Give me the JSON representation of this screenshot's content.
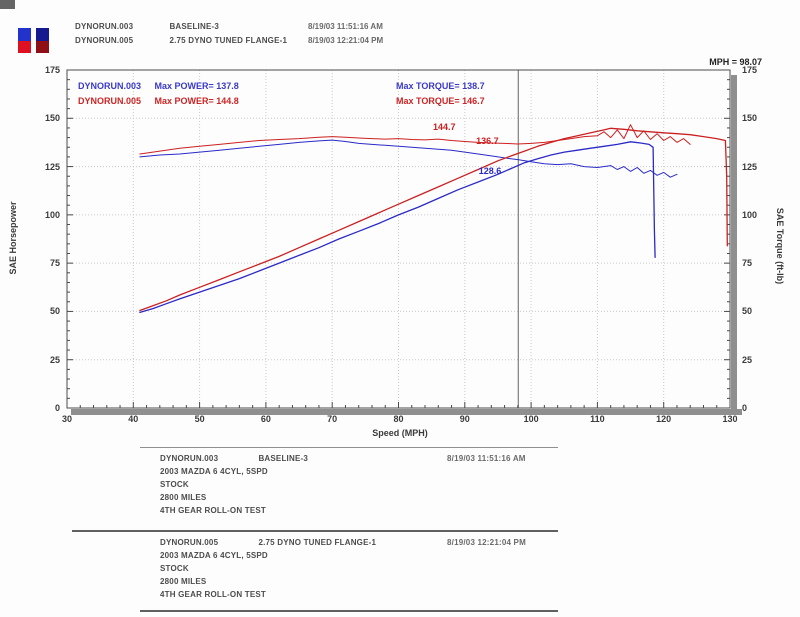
{
  "header": {
    "rows": [
      {
        "name": "DYNORUN.003",
        "desc": "BASELINE-3",
        "timestamp": "8/19/03 11:51:16 AM"
      },
      {
        "name": "DYNORUN.005",
        "desc": "2.75 DYNO TUNED FLANGE-1",
        "timestamp": "8/19/03 12:21:04 PM"
      }
    ],
    "chips": [
      {
        "top": "#2233cc",
        "bottom": "#dd1122"
      },
      {
        "top": "#151a8e",
        "bottom": "#8e1016"
      }
    ]
  },
  "cursor": {
    "label": "MPH = 98.07",
    "mph": 98.07
  },
  "chart_data": {
    "type": "line",
    "xlabel": "Speed (MPH)",
    "ylabel_left": "SAE Horsepower",
    "ylabel_right": "SAE Torque (ft-lb)",
    "xlim": [
      30,
      130
    ],
    "ylim": [
      0,
      175
    ],
    "x_ticks": [
      30,
      40,
      50,
      60,
      70,
      80,
      90,
      100,
      110,
      120,
      130
    ],
    "y_ticks": [
      0,
      25,
      50,
      75,
      100,
      125,
      150,
      175
    ],
    "grid": "dotted",
    "legend_position": "top-left-inside",
    "legend": [
      {
        "run": "DYNORUN.003",
        "power": "Max POWER= 137.8",
        "torque": "Max TORQUE= 138.7",
        "color": "#3a3ac8"
      },
      {
        "run": "DYNORUN.005",
        "power": "Max POWER= 144.8",
        "torque": "Max TORQUE= 146.7",
        "color": "#cc2525"
      }
    ],
    "series": [
      {
        "name": "DYNORUN.003 horsepower",
        "color": "#2a2ac8",
        "width": 1.3,
        "points": [
          [
            41,
            49.5
          ],
          [
            43,
            51.5
          ],
          [
            45,
            54
          ],
          [
            47,
            56.5
          ],
          [
            50,
            60
          ],
          [
            53,
            63.5
          ],
          [
            56,
            67
          ],
          [
            59,
            71
          ],
          [
            62,
            75
          ],
          [
            65,
            79
          ],
          [
            68,
            83
          ],
          [
            71,
            87.5
          ],
          [
            74,
            91.5
          ],
          [
            77,
            95.5
          ],
          [
            80,
            100
          ],
          [
            83,
            104
          ],
          [
            86,
            108.5
          ],
          [
            89,
            113
          ],
          [
            92,
            117
          ],
          [
            95,
            121
          ],
          [
            97,
            124
          ],
          [
            99,
            127
          ],
          [
            101,
            129
          ],
          [
            103,
            131
          ],
          [
            105,
            132.5
          ],
          [
            107,
            133.5
          ],
          [
            109,
            134.5
          ],
          [
            111,
            135.5
          ],
          [
            113,
            136.5
          ],
          [
            115,
            137.8
          ],
          [
            116.5,
            137.2
          ],
          [
            117.8,
            136.5
          ],
          [
            118.4,
            135
          ],
          [
            118.6,
            92
          ],
          [
            118.7,
            78
          ]
        ]
      },
      {
        "name": "DYNORUN.003 torque",
        "color": "#2a2ac8",
        "width": 1,
        "points": [
          [
            41,
            130
          ],
          [
            44,
            131
          ],
          [
            47,
            131.5
          ],
          [
            50,
            132.5
          ],
          [
            53,
            133.5
          ],
          [
            56,
            134.5
          ],
          [
            59,
            135.5
          ],
          [
            62,
            136.5
          ],
          [
            65,
            137.5
          ],
          [
            68,
            138.3
          ],
          [
            70,
            138.7
          ],
          [
            72,
            138
          ],
          [
            74,
            137
          ],
          [
            76,
            136.5
          ],
          [
            78,
            136
          ],
          [
            80,
            135.5
          ],
          [
            82,
            135
          ],
          [
            84,
            134.5
          ],
          [
            86,
            134
          ],
          [
            88,
            133.5
          ],
          [
            90,
            132.5
          ],
          [
            92,
            131.5
          ],
          [
            94,
            130.5
          ],
          [
            96,
            129.5
          ],
          [
            98,
            128.6
          ],
          [
            100,
            127.5
          ],
          [
            102,
            126.5
          ],
          [
            104,
            126
          ],
          [
            106,
            126.5
          ],
          [
            108,
            125
          ],
          [
            110,
            124.5
          ],
          [
            112,
            125.5
          ],
          [
            113,
            123.5
          ],
          [
            114,
            125
          ],
          [
            115,
            122.5
          ],
          [
            116,
            124.5
          ],
          [
            117,
            121.5
          ],
          [
            118,
            123
          ],
          [
            119,
            120.5
          ],
          [
            120,
            122
          ],
          [
            121,
            119.5
          ],
          [
            122,
            121
          ]
        ]
      },
      {
        "name": "DYNORUN.005 horsepower",
        "color": "#cc2020",
        "width": 1.3,
        "points": [
          [
            41,
            50.5
          ],
          [
            43,
            53
          ],
          [
            45,
            55.5
          ],
          [
            47,
            58.5
          ],
          [
            50,
            62.5
          ],
          [
            53,
            66.5
          ],
          [
            56,
            70.5
          ],
          [
            59,
            74.5
          ],
          [
            62,
            78.5
          ],
          [
            65,
            83
          ],
          [
            68,
            87.5
          ],
          [
            71,
            92
          ],
          [
            74,
            96.5
          ],
          [
            77,
            101
          ],
          [
            80,
            105.5
          ],
          [
            83,
            110
          ],
          [
            86,
            114.5
          ],
          [
            89,
            119
          ],
          [
            92,
            123.5
          ],
          [
            95,
            128
          ],
          [
            97,
            130.5
          ],
          [
            99,
            133
          ],
          [
            101,
            135.5
          ],
          [
            103,
            137.5
          ],
          [
            105,
            139.5
          ],
          [
            107,
            141
          ],
          [
            109,
            142.5
          ],
          [
            111,
            144
          ],
          [
            112,
            144.8
          ],
          [
            114,
            144.3
          ],
          [
            116,
            143.5
          ],
          [
            118,
            143
          ],
          [
            120,
            142.5
          ],
          [
            122,
            142
          ],
          [
            124,
            141.5
          ],
          [
            126,
            140.5
          ],
          [
            128,
            139.5
          ],
          [
            129.3,
            138.5
          ],
          [
            129.5,
            120
          ],
          [
            129.6,
            84
          ]
        ]
      },
      {
        "name": "DYNORUN.005 torque",
        "color": "#cc2020",
        "width": 1,
        "points": [
          [
            41,
            131.5
          ],
          [
            44,
            133
          ],
          [
            47,
            134.5
          ],
          [
            50,
            135.5
          ],
          [
            53,
            136.5
          ],
          [
            56,
            137.5
          ],
          [
            59,
            138.5
          ],
          [
            62,
            139
          ],
          [
            65,
            139.5
          ],
          [
            68,
            140.2
          ],
          [
            70,
            140.5
          ],
          [
            72,
            140.2
          ],
          [
            74,
            139.8
          ],
          [
            76,
            139.5
          ],
          [
            78,
            139.2
          ],
          [
            80,
            139.5
          ],
          [
            82,
            139
          ],
          [
            84,
            138.8
          ],
          [
            86,
            139.2
          ],
          [
            88,
            138.5
          ],
          [
            90,
            138
          ],
          [
            92,
            137.5
          ],
          [
            94,
            137.2
          ],
          [
            96,
            137
          ],
          [
            98,
            136.7
          ],
          [
            100,
            137
          ],
          [
            102,
            137.5
          ],
          [
            104,
            138.5
          ],
          [
            106,
            139.5
          ],
          [
            108,
            140.5
          ],
          [
            110,
            141
          ],
          [
            111,
            143
          ],
          [
            112,
            140
          ],
          [
            113,
            144
          ],
          [
            114,
            139.5
          ],
          [
            115,
            146.7
          ],
          [
            116,
            140
          ],
          [
            117,
            143.5
          ],
          [
            118,
            139
          ],
          [
            119,
            142
          ],
          [
            120,
            138.5
          ],
          [
            121,
            140.5
          ],
          [
            122,
            137.5
          ],
          [
            123,
            139.5
          ],
          [
            124,
            136.5
          ]
        ]
      }
    ],
    "annotations": [
      {
        "text": "144.7",
        "color": "#cc2020",
        "x_mph": 85.2,
        "y_value": 148
      },
      {
        "text": "136.7",
        "color": "#cc2020",
        "x_mph": 91.7,
        "y_value": 140.8
      },
      {
        "text": "128.6",
        "color": "#2a2ac8",
        "x_mph": 92.1,
        "y_value": 125.3
      }
    ]
  },
  "footer": {
    "blocks": [
      {
        "name": "DYNORUN.003",
        "desc": "BASELINE-3",
        "timestamp": "8/19/03 11:51:16 AM",
        "details": [
          "2003 MAZDA 6 4CYL, 5SPD",
          "STOCK",
          "2800 MILES",
          "4TH GEAR ROLL-ON TEST"
        ]
      },
      {
        "name": "DYNORUN.005",
        "desc": "2.75 DYNO TUNED FLANGE-1",
        "timestamp": "8/19/03 12:21:04 PM",
        "details": [
          "2003 MAZDA 6 4CYL, 5SPD",
          "STOCK",
          "2800 MILES",
          "4TH GEAR ROLL-ON TEST"
        ]
      }
    ]
  }
}
